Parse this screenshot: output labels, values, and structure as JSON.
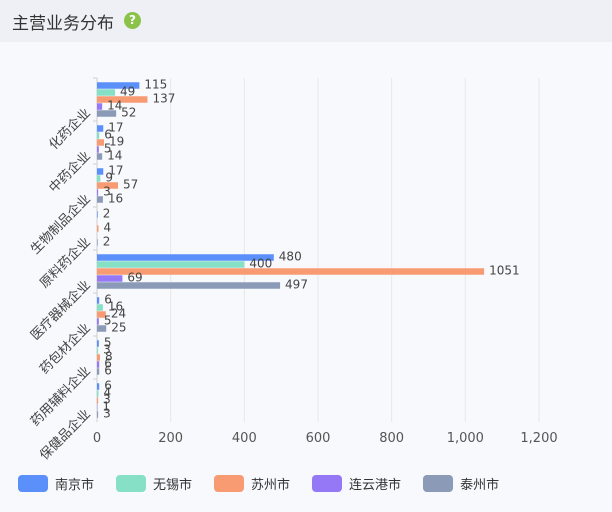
{
  "header": {
    "title": "主营业务分布",
    "help_icon": "question-circle-icon"
  },
  "chart_data": {
    "type": "bar",
    "orientation": "horizontal",
    "title": "",
    "xlabel": "",
    "ylabel": "",
    "xlim": [
      0,
      1200
    ],
    "x_ticks": [
      "0",
      "200",
      "400",
      "600",
      "800",
      "1,000",
      "1,200"
    ],
    "grid": true,
    "legend_position": "bottom-left",
    "categories": [
      "化药企业",
      "中药企业",
      "生物制品企业",
      "原料药企业",
      "医疗器械企业",
      "药包材企业",
      "药用辅料企业",
      "保健品企业"
    ],
    "series": [
      {
        "name": "南京市",
        "color": "#5b8ff9",
        "values": [
          115,
          17,
          17,
          2,
          480,
          6,
          5,
          6
        ]
      },
      {
        "name": "无锡市",
        "color": "#85e0c6",
        "values": [
          49,
          6,
          9,
          null,
          400,
          16,
          3,
          4
        ]
      },
      {
        "name": "苏州市",
        "color": "#f89b73",
        "values": [
          137,
          19,
          57,
          4,
          1051,
          24,
          8,
          3
        ]
      },
      {
        "name": "连云港市",
        "color": "#9478f6",
        "values": [
          14,
          5,
          3,
          null,
          69,
          5,
          6,
          1
        ]
      },
      {
        "name": "泰州市",
        "color": "#8a9ab7",
        "values": [
          52,
          14,
          16,
          2,
          497,
          25,
          6,
          3
        ]
      }
    ]
  }
}
